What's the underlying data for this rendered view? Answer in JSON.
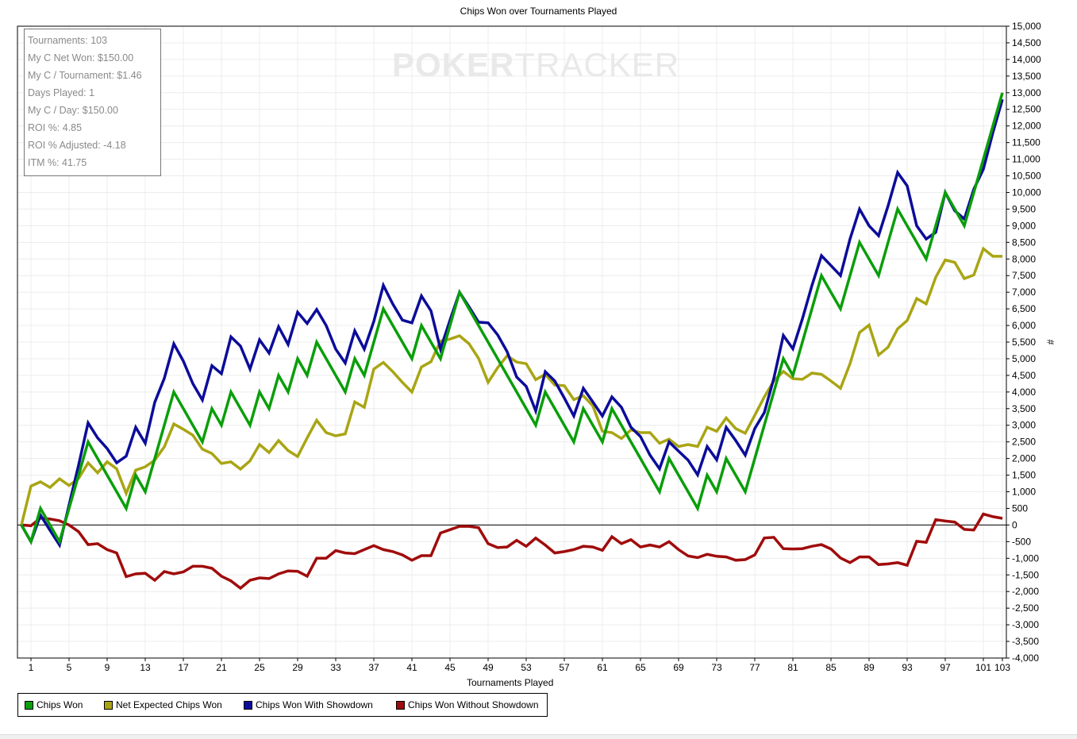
{
  "stats": [
    "Tournaments: 103",
    "My C Net Won: $150.00",
    "My C / Tournament: $1.46",
    "Days Played: 1",
    "My C / Day: $150.00",
    "ROI %: 4.85",
    "ROI % Adjusted: -4.18",
    "ITM %: 41.75"
  ],
  "watermark": {
    "bold": "POKER",
    "light": "TRACKER"
  },
  "chart_data": {
    "type": "line",
    "title": "Chips Won over Tournaments Played",
    "xlabel": "Tournaments Played",
    "ylabel": "#",
    "xlim": [
      0,
      103
    ],
    "ylim": [
      -4000,
      15000
    ],
    "x_ticks": [
      1,
      5,
      9,
      13,
      17,
      21,
      25,
      29,
      33,
      37,
      41,
      45,
      49,
      53,
      57,
      61,
      65,
      69,
      73,
      77,
      81,
      85,
      89,
      93,
      97,
      101,
      103
    ],
    "y_tick_step": 500,
    "grid": true,
    "legend_position": "bottom-left",
    "series": [
      {
        "name": "Chips Won",
        "color": "#0a9e0a",
        "values": [
          0,
          -500,
          500,
          0,
          -500,
          500,
          1500,
          2500,
          2000,
          1500,
          1000,
          500,
          1500,
          1000,
          2000,
          3000,
          4000,
          3500,
          3000,
          2500,
          3500,
          3000,
          4000,
          3500,
          3000,
          4000,
          3500,
          4500,
          4000,
          5000,
          4500,
          5500,
          5000,
          4500,
          4000,
          5000,
          4500,
          5500,
          6500,
          6000,
          5500,
          5000,
          6000,
          5500,
          5000,
          6000,
          7000,
          6500,
          6000,
          5500,
          5000,
          4500,
          4000,
          3500,
          3000,
          4000,
          3500,
          3000,
          2500,
          3500,
          3000,
          2500,
          3500,
          3000,
          2500,
          2000,
          1500,
          1000,
          2000,
          1500,
          1000,
          500,
          1500,
          1000,
          2000,
          1500,
          1000,
          2000,
          3000,
          4000,
          5000,
          4500,
          5500,
          6500,
          7500,
          7000,
          6500,
          7500,
          8500,
          8000,
          7500,
          8500,
          9500,
          9000,
          8500,
          8000,
          9000,
          10000,
          9500,
          9000,
          10000,
          11000,
          12000,
          13000
        ]
      },
      {
        "name": "Net Expected Chips Won",
        "color": "#a9a514",
        "values": [
          0,
          1170,
          1300,
          1130,
          1390,
          1190,
          1400,
          1870,
          1570,
          1900,
          1690,
          950,
          1650,
          1750,
          1950,
          2350,
          3040,
          2880,
          2700,
          2280,
          2150,
          1850,
          1900,
          1680,
          1930,
          2420,
          2180,
          2540,
          2240,
          2060,
          2620,
          3150,
          2780,
          2680,
          2740,
          3700,
          3540,
          4690,
          4890,
          4610,
          4290,
          4000,
          4750,
          4910,
          5530,
          5590,
          5690,
          5450,
          5010,
          4290,
          4730,
          5090,
          4900,
          4850,
          4370,
          4530,
          4210,
          4190,
          3770,
          3890,
          3580,
          2820,
          2780,
          2600,
          2860,
          2780,
          2780,
          2460,
          2580,
          2360,
          2420,
          2360,
          2940,
          2820,
          3220,
          2900,
          2760,
          3300,
          3850,
          4330,
          4620,
          4400,
          4380,
          4570,
          4530,
          4330,
          4110,
          4850,
          5790,
          6010,
          5110,
          5350,
          5900,
          6150,
          6810,
          6650,
          7450,
          7970,
          7900,
          7410,
          7520,
          8310,
          8080,
          8080
        ]
      },
      {
        "name": "Chips Won With Showdown",
        "color": "#0c0c9a",
        "values": [
          0,
          -500,
          300,
          -160,
          -600,
          600,
          1800,
          3070,
          2620,
          2300,
          1870,
          2070,
          2940,
          2460,
          3690,
          4410,
          5450,
          4930,
          4250,
          3760,
          4790,
          4550,
          5660,
          5380,
          4690,
          5570,
          5170,
          5960,
          5430,
          6400,
          6060,
          6480,
          6000,
          5290,
          4870,
          5840,
          5290,
          6120,
          7210,
          6640,
          6160,
          6080,
          6890,
          6440,
          5290,
          6160,
          7000,
          6560,
          6100,
          6080,
          5720,
          5210,
          4450,
          4170,
          3430,
          4610,
          4330,
          3820,
          3280,
          4110,
          3700,
          3280,
          3850,
          3540,
          2940,
          2660,
          2100,
          1690,
          2500,
          2220,
          1950,
          1510,
          2360,
          1960,
          2940,
          2540,
          2100,
          2900,
          3380,
          4410,
          5700,
          5300,
          6200,
          7200,
          8100,
          7800,
          7500,
          8600,
          9500,
          9000,
          8700,
          9600,
          10600,
          10200,
          9000,
          8600,
          8800,
          10000,
          9450,
          9200,
          10100,
          10700,
          11800,
          12800
        ]
      },
      {
        "name": "Chips Won Without Showdown",
        "color": "#a00c0c",
        "values": [
          0,
          -20,
          210,
          180,
          130,
          0,
          -200,
          -590,
          -560,
          -740,
          -840,
          -1550,
          -1470,
          -1450,
          -1660,
          -1400,
          -1470,
          -1410,
          -1240,
          -1240,
          -1300,
          -1540,
          -1680,
          -1900,
          -1660,
          -1590,
          -1610,
          -1470,
          -1380,
          -1390,
          -1540,
          -1000,
          -1000,
          -770,
          -840,
          -860,
          -740,
          -620,
          -740,
          -800,
          -900,
          -1060,
          -920,
          -920,
          -240,
          -140,
          -40,
          -40,
          -80,
          -560,
          -680,
          -660,
          -460,
          -640,
          -390,
          -600,
          -840,
          -800,
          -740,
          -640,
          -660,
          -760,
          -350,
          -560,
          -440,
          -660,
          -600,
          -660,
          -500,
          -740,
          -930,
          -980,
          -880,
          -940,
          -960,
          -1060,
          -1040,
          -900,
          -390,
          -370,
          -710,
          -720,
          -710,
          -640,
          -590,
          -720,
          -990,
          -1130,
          -960,
          -960,
          -1190,
          -1170,
          -1130,
          -1210,
          -490,
          -520,
          160,
          120,
          90,
          -130,
          -150,
          330,
          250,
          200
        ]
      }
    ]
  }
}
